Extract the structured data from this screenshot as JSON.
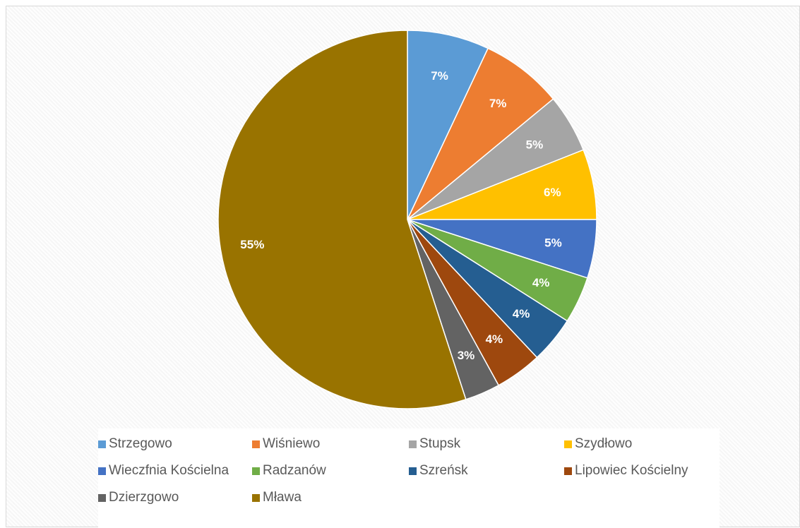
{
  "chart_data": {
    "type": "pie",
    "title": "",
    "legend_position": "bottom",
    "slices": [
      {
        "name": "Strzegowo",
        "value": 7,
        "label": "7%",
        "color": "#5b9bd5"
      },
      {
        "name": "Wiśniewo",
        "value": 7,
        "label": "7%",
        "color": "#ed7d31"
      },
      {
        "name": "Stupsk",
        "value": 5,
        "label": "5%",
        "color": "#a5a5a5"
      },
      {
        "name": "Szydłowo",
        "value": 6,
        "label": "6%",
        "color": "#ffc000"
      },
      {
        "name": "Wieczfnia Kościelna",
        "value": 5,
        "label": "5%",
        "color": "#4472c4"
      },
      {
        "name": "Radzanów",
        "value": 4,
        "label": "4%",
        "color": "#70ad47"
      },
      {
        "name": "Szreńsk",
        "value": 4,
        "label": "4%",
        "color": "#255e91"
      },
      {
        "name": "Lipowiec Kościelny",
        "value": 4,
        "label": "4%",
        "color": "#9e480e"
      },
      {
        "name": "Dzierzgowo",
        "value": 3,
        "label": "3%",
        "color": "#636363"
      },
      {
        "name": "Mława",
        "value": 55,
        "label": "55%",
        "color": "#997300"
      }
    ]
  }
}
